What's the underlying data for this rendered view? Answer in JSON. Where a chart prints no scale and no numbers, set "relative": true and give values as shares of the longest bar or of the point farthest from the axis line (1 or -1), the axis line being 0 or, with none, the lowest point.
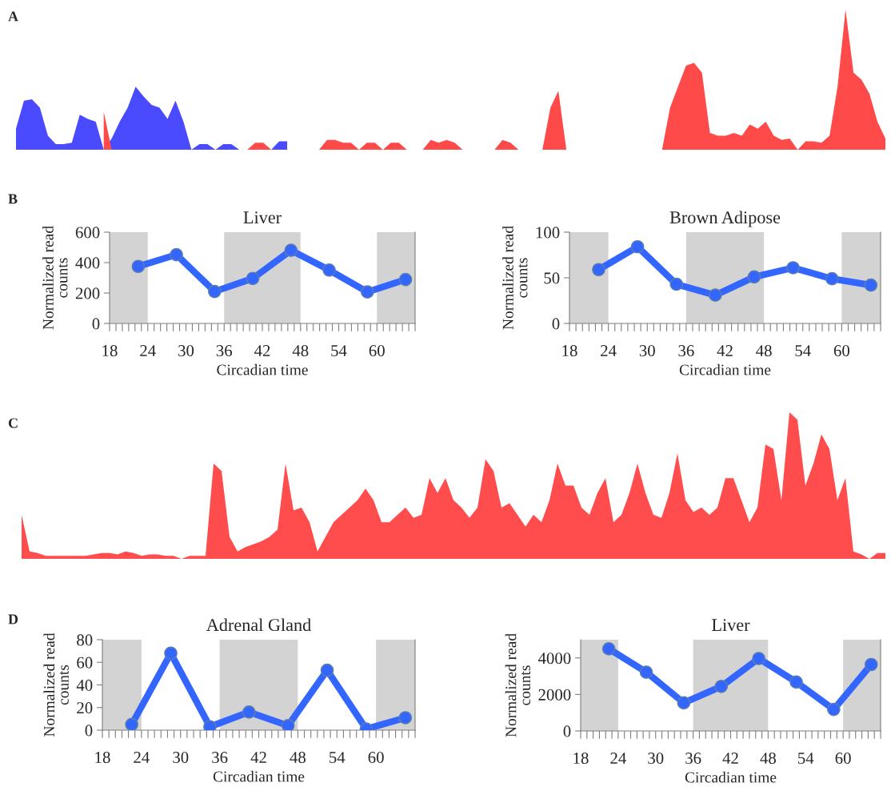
{
  "chart_data": [
    {
      "type": "area",
      "relative": true,
      "title": "A",
      "categories": [
        null,
        null,
        null,
        null,
        null,
        null,
        null,
        null,
        null,
        null,
        null,
        null,
        null,
        null,
        null,
        null,
        null,
        null,
        null,
        null,
        null,
        null,
        null,
        null,
        null,
        null,
        null,
        null,
        null,
        null,
        null,
        null,
        null,
        null,
        null,
        null,
        null,
        null,
        null,
        null,
        null,
        null,
        null,
        null,
        null,
        null,
        null,
        null,
        null,
        null,
        null,
        null,
        null,
        null,
        null,
        null,
        null,
        null,
        null,
        null,
        null,
        null,
        null,
        null,
        null,
        null,
        null,
        null,
        null,
        null,
        null,
        null,
        null,
        null,
        null,
        null,
        null,
        null,
        null,
        null,
        null,
        null,
        null,
        null,
        null,
        null,
        null,
        null,
        null,
        null,
        null,
        null,
        null,
        null,
        null,
        null,
        null,
        null,
        null,
        null,
        null,
        null,
        null,
        null,
        null,
        null,
        null,
        null,
        null,
        null
      ],
      "series": [
        {
          "color": "#4a4aff",
          "values": [
            0.15,
            0.35,
            0.36,
            0.3,
            0.1,
            0.04,
            0.04,
            0.05,
            0.25,
            0.22,
            0.2,
            0,
            0.08,
            0.2,
            0.3,
            0.45,
            0.38,
            0.32,
            0.3,
            0.22,
            0.35,
            0.2,
            0,
            0.04,
            0.04,
            0,
            0.04,
            0.04,
            0,
            0,
            0,
            0,
            0,
            0.06,
            0.06,
            null,
            null,
            null,
            null,
            null,
            null,
            null,
            null,
            null,
            null,
            null,
            null,
            null,
            null,
            null,
            null,
            null,
            null,
            null,
            null,
            null,
            null,
            null,
            null,
            null,
            null,
            null,
            null,
            null,
            null,
            null,
            null,
            null,
            null,
            null,
            null,
            null,
            null,
            null,
            null,
            null,
            null,
            null,
            null,
            null,
            null,
            null,
            null,
            null,
            null,
            null,
            null,
            null,
            null,
            null,
            null,
            null,
            null,
            null,
            null,
            null,
            null,
            null,
            null,
            null,
            null,
            null,
            null,
            null,
            null,
            null,
            null,
            null,
            null,
            null
          ]
        },
        {
          "color": "#ff4a4a",
          "values": [
            null,
            null,
            null,
            null,
            null,
            null,
            null,
            null,
            null,
            null,
            null,
            0.27,
            0,
            0,
            0,
            0,
            0,
            0,
            0,
            0,
            0,
            0,
            0,
            0,
            0,
            0,
            0,
            0,
            0,
            0,
            0.05,
            0.05,
            0,
            0,
            0,
            0,
            0,
            0,
            0,
            0.07,
            0.07,
            0.05,
            0.05,
            0,
            0.05,
            0.05,
            0,
            0.05,
            0.05,
            0,
            0,
            0,
            0.07,
            0.05,
            0.07,
            0.05,
            0,
            0,
            0,
            0,
            0,
            0.07,
            0.05,
            0,
            0,
            0,
            0,
            0.3,
            0.42,
            0,
            0,
            0,
            0,
            0,
            0,
            0,
            0,
            0,
            0,
            0,
            0,
            0,
            0.3,
            0.45,
            0.6,
            0.62,
            0.55,
            0.12,
            0.1,
            0.1,
            0.12,
            0.1,
            0.18,
            0.15,
            0.2,
            0.1,
            0.07,
            0.08,
            0,
            0.06,
            0.06,
            0.05,
            0.1,
            0.45,
            1.0,
            0.55,
            0.5,
            0.4,
            0.2,
            0.08
          ]
        }
      ]
    },
    {
      "type": "line",
      "title": "Liver",
      "xlabel": "Circadian time",
      "ylabel": "Normalized read\ncounts",
      "annotations": [
        "B"
      ],
      "x": [
        22.5,
        28.5,
        34.5,
        40.5,
        46.5,
        52.5,
        58.5,
        64.5
      ],
      "marker": "circle",
      "line_style": "solid",
      "series": [
        {
          "color": "#3366ff",
          "values": [
            375,
            452,
            210,
            296,
            481,
            351,
            207,
            289
          ]
        }
      ],
      "xlim": [
        18,
        66
      ],
      "ylim": [
        0,
        600
      ],
      "yticks": [
        0,
        200,
        400,
        600
      ],
      "xticks": [
        18,
        {
          "value": 19,
          "label": null
        },
        {
          "value": 20,
          "label": null
        },
        {
          "value": 21,
          "label": null
        },
        {
          "value": 22,
          "label": null
        },
        {
          "value": 23,
          "label": null
        },
        24,
        {
          "value": 25,
          "label": null
        },
        {
          "value": 26,
          "label": null
        },
        {
          "value": 27,
          "label": null
        },
        {
          "value": 28,
          "label": null
        },
        {
          "value": 29,
          "label": null
        },
        30,
        {
          "value": 31,
          "label": null
        },
        {
          "value": 32,
          "label": null
        },
        {
          "value": 33,
          "label": null
        },
        {
          "value": 34,
          "label": null
        },
        {
          "value": 35,
          "label": null
        },
        36,
        {
          "value": 37,
          "label": null
        },
        {
          "value": 38,
          "label": null
        },
        {
          "value": 39,
          "label": null
        },
        {
          "value": 40,
          "label": null
        },
        {
          "value": 41,
          "label": null
        },
        42,
        {
          "value": 43,
          "label": null
        },
        {
          "value": 44,
          "label": null
        },
        {
          "value": 45,
          "label": null
        },
        {
          "value": 46,
          "label": null
        },
        {
          "value": 47,
          "label": null
        },
        48,
        {
          "value": 49,
          "label": null
        },
        {
          "value": 50,
          "label": null
        },
        {
          "value": 51,
          "label": null
        },
        {
          "value": 52,
          "label": null
        },
        {
          "value": 53,
          "label": null
        },
        54,
        {
          "value": 55,
          "label": null
        },
        {
          "value": 56,
          "label": null
        },
        {
          "value": 57,
          "label": null
        },
        {
          "value": 58,
          "label": null
        },
        {
          "value": 59,
          "label": null
        },
        60,
        {
          "value": 61,
          "label": null
        },
        {
          "value": 62,
          "label": null
        },
        {
          "value": 63,
          "label": null
        },
        {
          "value": 64,
          "label": null
        },
        {
          "value": 65,
          "label": null
        },
        {
          "value": 66,
          "label": null
        }
      ],
      "bands": [
        {
          "axis": "x",
          "from": 18,
          "to": 24,
          "color": "#d3d3d3"
        },
        {
          "axis": "x",
          "from": 36,
          "to": 48,
          "color": "#d3d3d3"
        },
        {
          "axis": "x",
          "from": 60,
          "to": 66,
          "color": "#d3d3d3"
        }
      ]
    },
    {
      "type": "line",
      "title": "Brown Adipose",
      "xlabel": "Circadian time",
      "ylabel": "Normalized read\ncounts",
      "x": [
        22.5,
        28.5,
        34.5,
        40.5,
        46.5,
        52.5,
        58.5,
        64.5
      ],
      "marker": "circle",
      "line_style": "solid",
      "series": [
        {
          "color": "#3366ff",
          "values": [
            59,
            84,
            43,
            31,
            51,
            61,
            49,
            42
          ]
        }
      ],
      "xlim": [
        18,
        66
      ],
      "ylim": [
        0,
        100
      ],
      "yticks": [
        0,
        50,
        100
      ],
      "xticks": [
        18,
        {
          "value": 19,
          "label": null
        },
        {
          "value": 20,
          "label": null
        },
        {
          "value": 21,
          "label": null
        },
        {
          "value": 22,
          "label": null
        },
        {
          "value": 23,
          "label": null
        },
        24,
        {
          "value": 25,
          "label": null
        },
        {
          "value": 26,
          "label": null
        },
        {
          "value": 27,
          "label": null
        },
        {
          "value": 28,
          "label": null
        },
        {
          "value": 29,
          "label": null
        },
        30,
        {
          "value": 31,
          "label": null
        },
        {
          "value": 32,
          "label": null
        },
        {
          "value": 33,
          "label": null
        },
        {
          "value": 34,
          "label": null
        },
        {
          "value": 35,
          "label": null
        },
        36,
        {
          "value": 37,
          "label": null
        },
        {
          "value": 38,
          "label": null
        },
        {
          "value": 39,
          "label": null
        },
        {
          "value": 40,
          "label": null
        },
        {
          "value": 41,
          "label": null
        },
        42,
        {
          "value": 43,
          "label": null
        },
        {
          "value": 44,
          "label": null
        },
        {
          "value": 45,
          "label": null
        },
        {
          "value": 46,
          "label": null
        },
        {
          "value": 47,
          "label": null
        },
        48,
        {
          "value": 49,
          "label": null
        },
        {
          "value": 50,
          "label": null
        },
        {
          "value": 51,
          "label": null
        },
        {
          "value": 52,
          "label": null
        },
        {
          "value": 53,
          "label": null
        },
        54,
        {
          "value": 55,
          "label": null
        },
        {
          "value": 56,
          "label": null
        },
        {
          "value": 57,
          "label": null
        },
        {
          "value": 58,
          "label": null
        },
        {
          "value": 59,
          "label": null
        },
        60,
        {
          "value": 61,
          "label": null
        },
        {
          "value": 62,
          "label": null
        },
        {
          "value": 63,
          "label": null
        },
        {
          "value": 64,
          "label": null
        },
        {
          "value": 65,
          "label": null
        },
        {
          "value": 66,
          "label": null
        }
      ],
      "bands": [
        {
          "axis": "x",
          "from": 18,
          "to": 24,
          "color": "#d3d3d3"
        },
        {
          "axis": "x",
          "from": 36,
          "to": 48,
          "color": "#d3d3d3"
        },
        {
          "axis": "x",
          "from": 60,
          "to": 66,
          "color": "#d3d3d3"
        }
      ]
    },
    {
      "type": "area",
      "relative": true,
      "title": "C",
      "categories": [
        null,
        null,
        null,
        null,
        null,
        null,
        null,
        null,
        null,
        null,
        null,
        null,
        null,
        null,
        null,
        null,
        null,
        null,
        null,
        null,
        null,
        null,
        null,
        null,
        null,
        null,
        null,
        null,
        null,
        null,
        null,
        null,
        null,
        null,
        null,
        null,
        null,
        null,
        null,
        null,
        null,
        null,
        null,
        null,
        null,
        null,
        null,
        null,
        null,
        null,
        null,
        null,
        null,
        null,
        null,
        null,
        null,
        null,
        null,
        null,
        null,
        null,
        null,
        null,
        null,
        null,
        null,
        null,
        null,
        null,
        null,
        null,
        null,
        null,
        null,
        null,
        null,
        null,
        null,
        null,
        null,
        null,
        null,
        null,
        null,
        null,
        null,
        null,
        null,
        null,
        null,
        null,
        null,
        null,
        null,
        null,
        null,
        null,
        null,
        null,
        null,
        null,
        null,
        null,
        null,
        null,
        null,
        null,
        null
      ],
      "series": [
        {
          "color": "#ff4d4d",
          "values": [
            0.3,
            0.05,
            0.04,
            0.02,
            0.02,
            0.02,
            0.02,
            0.02,
            0.02,
            0.03,
            0.04,
            0.04,
            0.03,
            0.05,
            0.04,
            0.02,
            0.03,
            0.03,
            0.02,
            0.02,
            0,
            0.02,
            0.02,
            0.02,
            0.65,
            0.6,
            0.15,
            0.05,
            0.08,
            0.1,
            0.12,
            0.15,
            0.2,
            0.65,
            0.33,
            0.35,
            0.25,
            0.05,
            0.15,
            0.25,
            0.3,
            0.35,
            0.4,
            0.48,
            0.4,
            0.25,
            0.25,
            0.3,
            0.35,
            0.28,
            0.3,
            0.55,
            0.45,
            0.55,
            0.4,
            0.35,
            0.28,
            0.35,
            0.68,
            0.6,
            0.35,
            0.38,
            0.3,
            0.22,
            0.3,
            0.25,
            0.4,
            0.65,
            0.5,
            0.5,
            0.35,
            0.3,
            0.45,
            0.55,
            0.25,
            0.3,
            0.45,
            0.65,
            0.45,
            0.3,
            0.28,
            0.45,
            0.72,
            0.4,
            0.32,
            0.35,
            0.3,
            0.35,
            0.55,
            0.55,
            0.4,
            0.25,
            0.35,
            0.78,
            0.75,
            0.4,
            1.0,
            0.95,
            0.5,
            0.65,
            0.85,
            0.75,
            0.4,
            0.55,
            0.05,
            0.03,
            0,
            0.04,
            0.04
          ]
        }
      ]
    },
    {
      "type": "line",
      "title": "Adrenal Gland",
      "xlabel": "Circadian time",
      "ylabel": "Normalized read\ncounts",
      "annotations": [
        "D"
      ],
      "x": [
        22.5,
        28.5,
        34.5,
        40.5,
        46.5,
        52.5,
        58.5,
        64.5
      ],
      "marker": "circle",
      "line_style": "solid",
      "series": [
        {
          "color": "#3366ff",
          "values": [
            5,
            68,
            3,
            16,
            4,
            53,
            1,
            11
          ]
        }
      ],
      "xlim": [
        18,
        66
      ],
      "ylim": [
        0,
        80
      ],
      "yticks": [
        0,
        20,
        40,
        60,
        80
      ],
      "xticks": [
        18,
        {
          "value": 19,
          "label": null
        },
        {
          "value": 20,
          "label": null
        },
        {
          "value": 21,
          "label": null
        },
        {
          "value": 22,
          "label": null
        },
        {
          "value": 23,
          "label": null
        },
        24,
        {
          "value": 25,
          "label": null
        },
        {
          "value": 26,
          "label": null
        },
        {
          "value": 27,
          "label": null
        },
        {
          "value": 28,
          "label": null
        },
        {
          "value": 29,
          "label": null
        },
        30,
        {
          "value": 31,
          "label": null
        },
        {
          "value": 32,
          "label": null
        },
        {
          "value": 33,
          "label": null
        },
        {
          "value": 34,
          "label": null
        },
        {
          "value": 35,
          "label": null
        },
        36,
        {
          "value": 37,
          "label": null
        },
        {
          "value": 38,
          "label": null
        },
        {
          "value": 39,
          "label": null
        },
        {
          "value": 40,
          "label": null
        },
        {
          "value": 41,
          "label": null
        },
        42,
        {
          "value": 43,
          "label": null
        },
        {
          "value": 44,
          "label": null
        },
        {
          "value": 45,
          "label": null
        },
        {
          "value": 46,
          "label": null
        },
        {
          "value": 47,
          "label": null
        },
        48,
        {
          "value": 49,
          "label": null
        },
        {
          "value": 50,
          "label": null
        },
        {
          "value": 51,
          "label": null
        },
        {
          "value": 52,
          "label": null
        },
        {
          "value": 53,
          "label": null
        },
        54,
        {
          "value": 55,
          "label": null
        },
        {
          "value": 56,
          "label": null
        },
        {
          "value": 57,
          "label": null
        },
        {
          "value": 58,
          "label": null
        },
        {
          "value": 59,
          "label": null
        },
        60,
        {
          "value": 61,
          "label": null
        },
        {
          "value": 62,
          "label": null
        },
        {
          "value": 63,
          "label": null
        },
        {
          "value": 64,
          "label": null
        },
        {
          "value": 65,
          "label": null
        },
        {
          "value": 66,
          "label": null
        }
      ],
      "bands": [
        {
          "axis": "x",
          "from": 18,
          "to": 24,
          "color": "#d3d3d3"
        },
        {
          "axis": "x",
          "from": 36,
          "to": 48,
          "color": "#d3d3d3"
        },
        {
          "axis": "x",
          "from": 60,
          "to": 66,
          "color": "#d3d3d3"
        }
      ]
    },
    {
      "type": "line",
      "title": "Liver",
      "xlabel": "Circadian time",
      "ylabel": "Normalized read\ncounts",
      "x": [
        22.5,
        28.5,
        34.5,
        40.5,
        46.5,
        52.5,
        58.5,
        64.5
      ],
      "marker": "circle",
      "line_style": "solid",
      "series": [
        {
          "color": "#3366ff",
          "values": [
            4500,
            3220,
            1540,
            2440,
            3970,
            2680,
            1180,
            3640
          ]
        }
      ],
      "xlim": [
        18,
        66
      ],
      "ylim": [
        0,
        5000
      ],
      "yticks": [
        0,
        2000,
        4000
      ],
      "xticks": [
        18,
        {
          "value": 19,
          "label": null
        },
        {
          "value": 20,
          "label": null
        },
        {
          "value": 21,
          "label": null
        },
        {
          "value": 22,
          "label": null
        },
        {
          "value": 23,
          "label": null
        },
        24,
        {
          "value": 25,
          "label": null
        },
        {
          "value": 26,
          "label": null
        },
        {
          "value": 27,
          "label": null
        },
        {
          "value": 28,
          "label": null
        },
        {
          "value": 29,
          "label": null
        },
        30,
        {
          "value": 31,
          "label": null
        },
        {
          "value": 32,
          "label": null
        },
        {
          "value": 33,
          "label": null
        },
        {
          "value": 34,
          "label": null
        },
        {
          "value": 35,
          "label": null
        },
        36,
        {
          "value": 37,
          "label": null
        },
        {
          "value": 38,
          "label": null
        },
        {
          "value": 39,
          "label": null
        },
        {
          "value": 40,
          "label": null
        },
        {
          "value": 41,
          "label": null
        },
        42,
        {
          "value": 43,
          "label": null
        },
        {
          "value": 44,
          "label": null
        },
        {
          "value": 45,
          "label": null
        },
        {
          "value": 46,
          "label": null
        },
        {
          "value": 47,
          "label": null
        },
        48,
        {
          "value": 49,
          "label": null
        },
        {
          "value": 50,
          "label": null
        },
        {
          "value": 51,
          "label": null
        },
        {
          "value": 52,
          "label": null
        },
        {
          "value": 53,
          "label": null
        },
        54,
        {
          "value": 55,
          "label": null
        },
        {
          "value": 56,
          "label": null
        },
        {
          "value": 57,
          "label": null
        },
        {
          "value": 58,
          "label": null
        },
        {
          "value": 59,
          "label": null
        },
        60,
        {
          "value": 61,
          "label": null
        },
        {
          "value": 62,
          "label": null
        },
        {
          "value": 63,
          "label": null
        },
        {
          "value": 64,
          "label": null
        },
        {
          "value": 65,
          "label": null
        },
        {
          "value": 66,
          "label": null
        }
      ],
      "bands": [
        {
          "axis": "x",
          "from": 18,
          "to": 24,
          "color": "#d3d3d3"
        },
        {
          "axis": "x",
          "from": 36,
          "to": 48,
          "color": "#d3d3d3"
        },
        {
          "axis": "x",
          "from": 60,
          "to": 66,
          "color": "#d3d3d3"
        }
      ]
    }
  ]
}
